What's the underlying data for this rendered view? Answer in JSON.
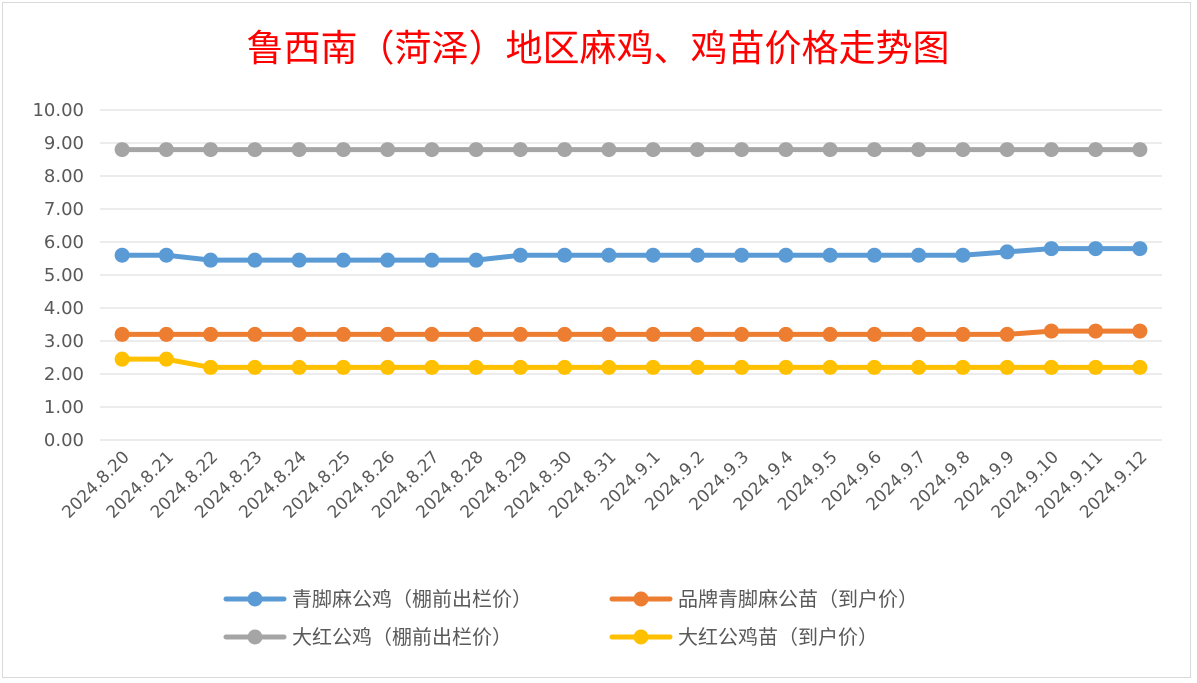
{
  "chart_data": {
    "type": "line",
    "title": "鲁西南（菏泽）地区麻鸡、鸡苗价格走势图",
    "xlabel": "",
    "ylabel": "",
    "ylim": [
      0,
      10
    ],
    "yticks": [
      "0.00",
      "1.00",
      "2.00",
      "3.00",
      "4.00",
      "5.00",
      "6.00",
      "7.00",
      "8.00",
      "9.00",
      "10.00"
    ],
    "categories": [
      "2024.8.20",
      "2024.8.21",
      "2024.8.22",
      "2024.8.23",
      "2024.8.24",
      "2024.8.25",
      "2024.8.26",
      "2024.8.27",
      "2024.8.28",
      "2024.8.29",
      "2024.8.30",
      "2024.8.31",
      "2024.9.1",
      "2024.9.2",
      "2024.9.3",
      "2024.9.4",
      "2024.9.5",
      "2024.9.6",
      "2024.9.7",
      "2024.9.8",
      "2024.9.9",
      "2024.9.10",
      "2024.9.11",
      "2024.9.12"
    ],
    "grid": true,
    "legend_position": "bottom",
    "series": [
      {
        "name": "青脚麻公鸡（棚前出栏价）",
        "color": "#5b9bd5",
        "values": [
          5.6,
          5.6,
          5.45,
          5.45,
          5.45,
          5.45,
          5.45,
          5.45,
          5.45,
          5.6,
          5.6,
          5.6,
          5.6,
          5.6,
          5.6,
          5.6,
          5.6,
          5.6,
          5.6,
          5.6,
          5.7,
          5.8,
          5.8,
          5.8
        ]
      },
      {
        "name": "品牌青脚麻公苗（到户价）",
        "color": "#ed7d31",
        "values": [
          3.2,
          3.2,
          3.2,
          3.2,
          3.2,
          3.2,
          3.2,
          3.2,
          3.2,
          3.2,
          3.2,
          3.2,
          3.2,
          3.2,
          3.2,
          3.2,
          3.2,
          3.2,
          3.2,
          3.2,
          3.2,
          3.3,
          3.3,
          3.3
        ]
      },
      {
        "name": "大红公鸡（棚前出栏价）",
        "color": "#a5a5a5",
        "values": [
          8.8,
          8.8,
          8.8,
          8.8,
          8.8,
          8.8,
          8.8,
          8.8,
          8.8,
          8.8,
          8.8,
          8.8,
          8.8,
          8.8,
          8.8,
          8.8,
          8.8,
          8.8,
          8.8,
          8.8,
          8.8,
          8.8,
          8.8,
          8.8
        ]
      },
      {
        "name": "大红公鸡苗（到户价）",
        "color": "#ffc000",
        "values": [
          2.45,
          2.45,
          2.2,
          2.2,
          2.2,
          2.2,
          2.2,
          2.2,
          2.2,
          2.2,
          2.2,
          2.2,
          2.2,
          2.2,
          2.2,
          2.2,
          2.2,
          2.2,
          2.2,
          2.2,
          2.2,
          2.2,
          2.2,
          2.2
        ]
      }
    ]
  }
}
